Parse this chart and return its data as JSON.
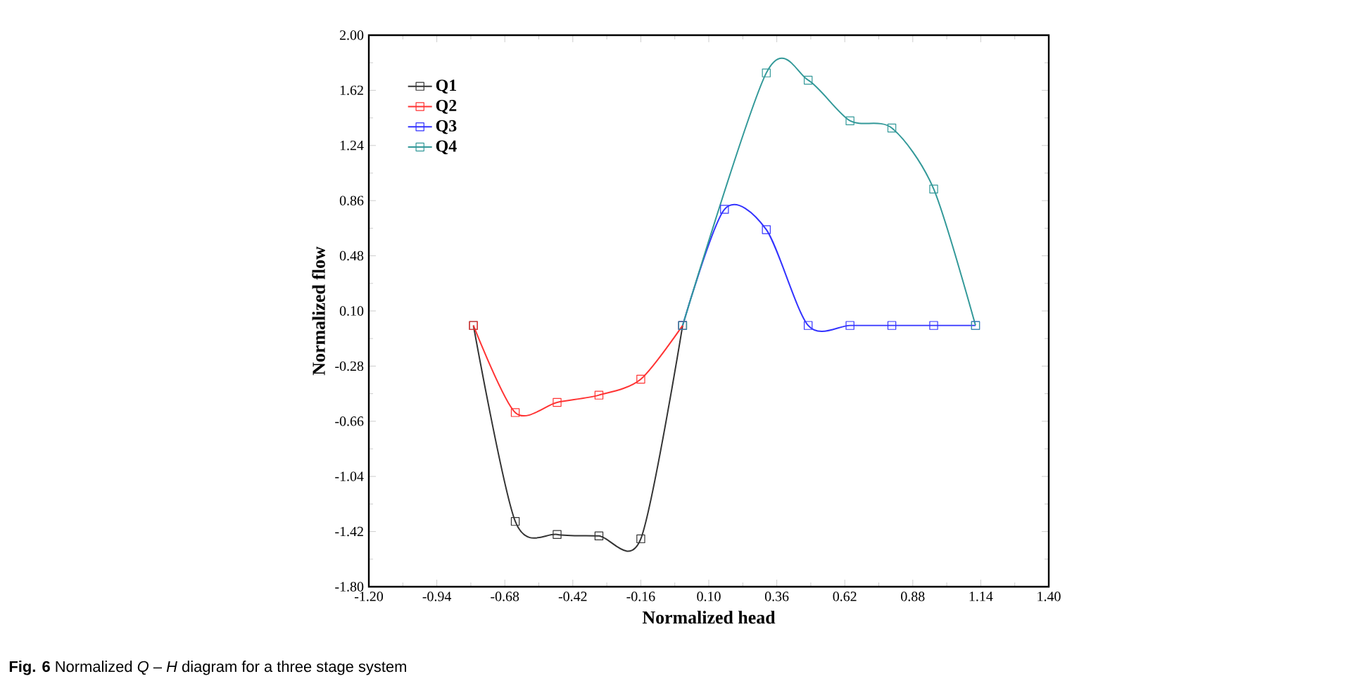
{
  "chart_data": {
    "type": "line",
    "xlabel": "Normalized head",
    "ylabel": "Normalized flow",
    "annotations": [
      "**Fig. 6** Normalized *Q* – *H* diagram for a three stage system"
    ],
    "xlim": [
      -1.2,
      1.4
    ],
    "ylim": [
      -1.8,
      2.0
    ],
    "xticks": [
      {
        "value": -1.2,
        "label": "-1.20"
      },
      {
        "value": -0.94,
        "label": "-0.94"
      },
      {
        "value": -0.68,
        "label": "-0.68"
      },
      {
        "value": -0.42,
        "label": "-0.42"
      },
      {
        "value": -0.16,
        "label": "-0.16"
      },
      {
        "value": 0.1,
        "label": "0.10"
      },
      {
        "value": 0.36,
        "label": "0.36"
      },
      {
        "value": 0.62,
        "label": "0.62"
      },
      {
        "value": 0.88,
        "label": "0.88"
      },
      {
        "value": 1.14,
        "label": "1.14"
      },
      {
        "value": 1.4,
        "label": "1.40"
      }
    ],
    "yticks": [
      {
        "value": -1.8,
        "label": "-1.80"
      },
      {
        "value": -1.42,
        "label": "-1.42"
      },
      {
        "value": -1.04,
        "label": "-1.04"
      },
      {
        "value": -0.66,
        "label": "-0.66"
      },
      {
        "value": -0.28,
        "label": "-0.28"
      },
      {
        "value": 0.1,
        "label": "0.10"
      },
      {
        "value": 0.48,
        "label": "0.48"
      },
      {
        "value": 0.86,
        "label": "0.86"
      },
      {
        "value": 1.24,
        "label": "1.24"
      },
      {
        "value": 1.62,
        "label": "1.62"
      },
      {
        "value": 2.0,
        "label": "2.00"
      }
    ],
    "marker": "square",
    "line_style": "solid",
    "legend": "top left",
    "series": [
      {
        "name": "Q1",
        "color": "#333333",
        "x": [
          -0.8,
          -0.64,
          -0.48,
          -0.32,
          -0.16,
          0
        ],
        "values": [
          0,
          -1.35,
          -1.44,
          -1.45,
          -1.47,
          0
        ]
      },
      {
        "name": "Q2",
        "color": "#ff3333",
        "x": [
          -0.8,
          -0.64,
          -0.48,
          -0.32,
          -0.16,
          0
        ],
        "values": [
          0,
          -0.6,
          -0.53,
          -0.48,
          -0.37,
          0
        ]
      },
      {
        "name": "Q3",
        "color": "#3333ff",
        "x": [
          0,
          0.16,
          0.32,
          0.48,
          0.64,
          0.8,
          0.96,
          1.12
        ],
        "values": [
          0,
          0.8,
          0.66,
          0,
          0,
          0,
          0,
          0
        ]
      },
      {
        "name": "Q4",
        "color": "#339999",
        "x": [
          0,
          0.32,
          0.48,
          0.64,
          0.8,
          0.96,
          1.12
        ],
        "values": [
          0,
          1.74,
          1.69,
          1.41,
          1.36,
          0.94,
          0
        ]
      }
    ]
  }
}
